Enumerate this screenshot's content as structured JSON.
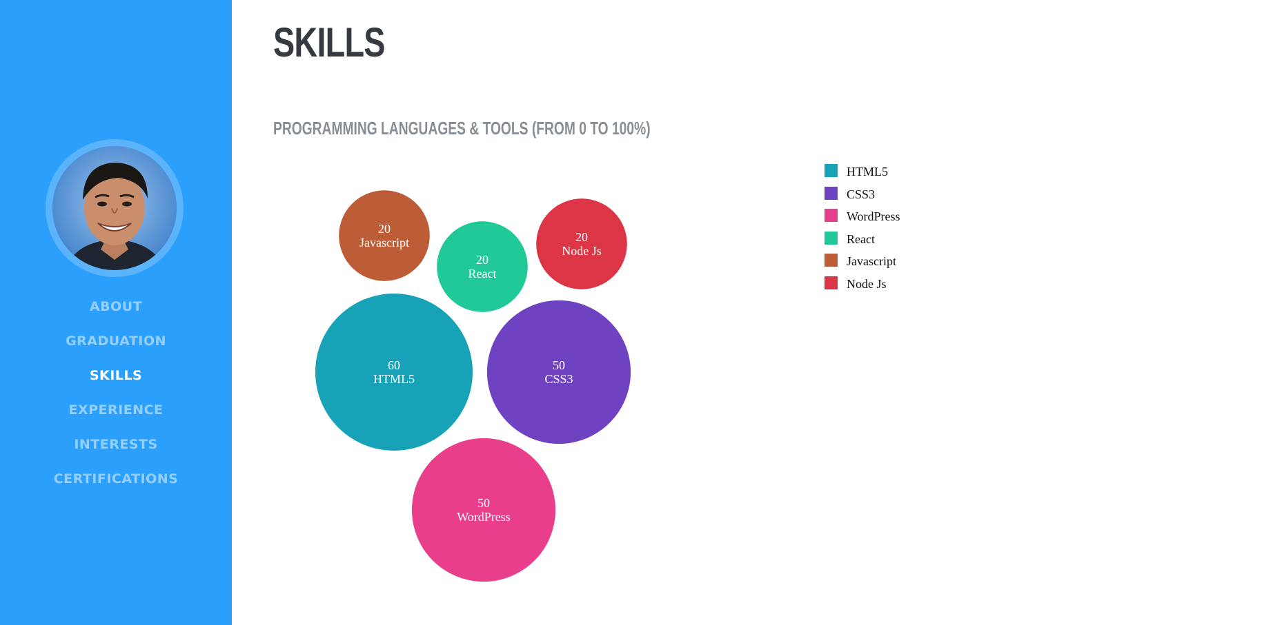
{
  "sidebar": {
    "background": "#2b9ffc",
    "avatar": {
      "icon": "profile-photo"
    },
    "nav_items": [
      {
        "label": "ABOUT",
        "active": false
      },
      {
        "label": "GRADUATION",
        "active": false
      },
      {
        "label": "SKILLS",
        "active": true
      },
      {
        "label": "EXPERIENCE",
        "active": false
      },
      {
        "label": "INTERESTS",
        "active": false
      },
      {
        "label": "CERTIFICATIONS",
        "active": false
      }
    ]
  },
  "main": {
    "title": "SKILLS",
    "subtitle": "PROGRAMMING LANGUAGES & TOOLS (FROM 0 TO 100%)"
  },
  "chart_data": {
    "type": "bubble",
    "title": "",
    "legend_position": "top-right",
    "series": [
      {
        "name": "HTML5",
        "value": 60,
        "color": "#17a2b8"
      },
      {
        "name": "CSS3",
        "value": 50,
        "color": "#6f42c1"
      },
      {
        "name": "WordPress",
        "value": 50,
        "color": "#e83e8c"
      },
      {
        "name": "React",
        "value": 20,
        "color": "#20c997"
      },
      {
        "name": "Javascript",
        "value": 20,
        "color": "#bd5d38"
      },
      {
        "name": "Node Js",
        "value": 20,
        "color": "#dc3545"
      }
    ]
  }
}
